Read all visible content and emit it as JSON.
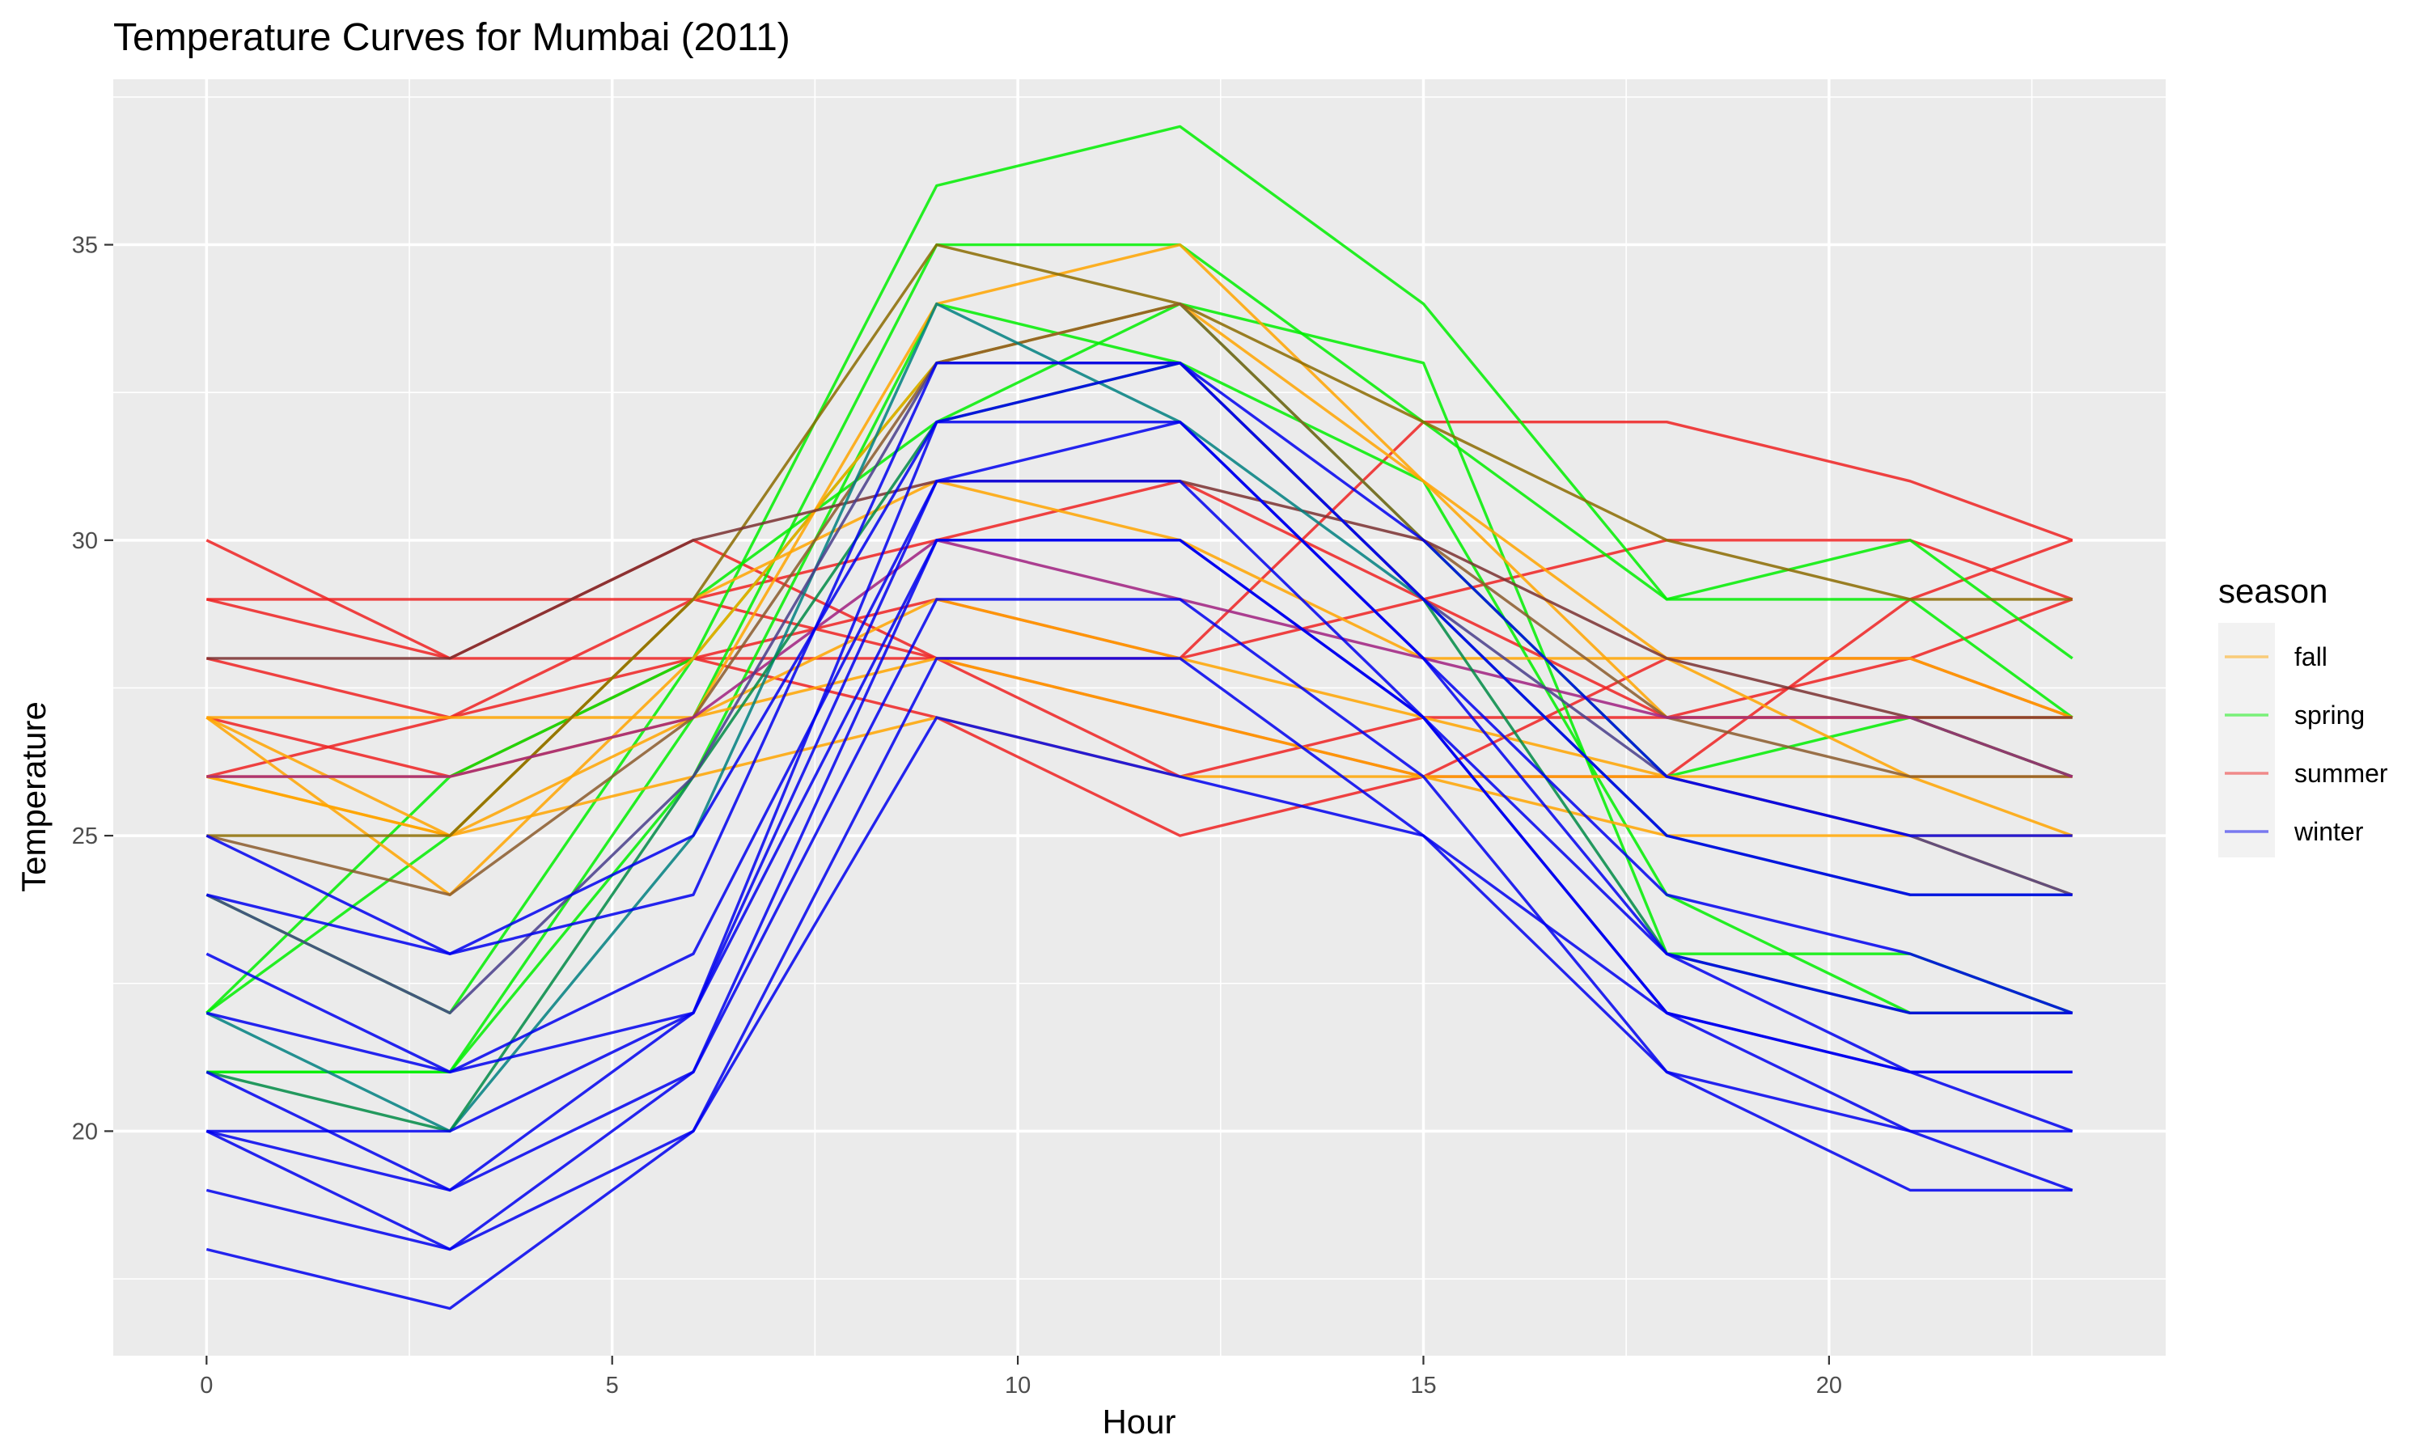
{
  "chart_data": {
    "type": "line",
    "title": "Temperature Curves for Mumbai (2011)",
    "xlabel": "Hour",
    "ylabel": "Temperature",
    "xlim": [
      -1.15,
      24.15
    ],
    "ylim": [
      16.2,
      37.8
    ],
    "x_ticks": [
      0,
      5,
      10,
      15,
      20
    ],
    "y_ticks": [
      20,
      25,
      30,
      35
    ],
    "x_minor": [
      2.5,
      7.5,
      12.5,
      17.5,
      22.5
    ],
    "y_minor": [
      17.5,
      22.5,
      27.5,
      32.5,
      37.5
    ],
    "grid": true,
    "panel_background": "#ebebeb",
    "legend": {
      "title": "season",
      "placement": "right",
      "entries": [
        {
          "label": "fall",
          "color": "#ffa500"
        },
        {
          "label": "spring",
          "color": "#00ee00"
        },
        {
          "label": "summer",
          "color": "#ee2222"
        },
        {
          "label": "winter",
          "color": "#0000ee"
        }
      ]
    },
    "x": [
      0,
      3,
      6,
      9,
      12,
      15,
      18,
      21,
      23
    ],
    "series": [
      {
        "season": "summer",
        "values": [
          30,
          28,
          28,
          27,
          25,
          26,
          26,
          29,
          30
        ]
      },
      {
        "season": "summer",
        "values": [
          29,
          28,
          30,
          28,
          27,
          26,
          28,
          28,
          29
        ]
      },
      {
        "season": "summer",
        "values": [
          28,
          27,
          29,
          30,
          31,
          29,
          30,
          30,
          29
        ]
      },
      {
        "season": "summer",
        "values": [
          27,
          26,
          28,
          29,
          28,
          29,
          27,
          27,
          26
        ]
      },
      {
        "season": "summer",
        "values": [
          26,
          27,
          28,
          28,
          26,
          27,
          27,
          28,
          27
        ]
      },
      {
        "season": "summer",
        "values": [
          29,
          29,
          29,
          28,
          28,
          32,
          32,
          31,
          30
        ]
      },
      {
        "season": "spring",
        "values": [
          22,
          26,
          28,
          36,
          37,
          34,
          29,
          29,
          27
        ]
      },
      {
        "season": "spring",
        "values": [
          21,
          21,
          27,
          35,
          35,
          32,
          29,
          30,
          28
        ]
      },
      {
        "season": "spring",
        "values": [
          21,
          21,
          26,
          34,
          33,
          31,
          24,
          22,
          22
        ]
      },
      {
        "season": "spring",
        "values": [
          22,
          25,
          29,
          32,
          34,
          33,
          23,
          23,
          22
        ]
      },
      {
        "season": "spring",
        "values": [
          24,
          22,
          28,
          33,
          34,
          30,
          26,
          27,
          26
        ]
      },
      {
        "season": "fall",
        "values": [
          26,
          26,
          27,
          34,
          35,
          31,
          27,
          27,
          27
        ]
      },
      {
        "season": "fall",
        "values": [
          27,
          24,
          28,
          33,
          34,
          31,
          28,
          28,
          27
        ]
      },
      {
        "season": "fall",
        "values": [
          27,
          25,
          29,
          31,
          30,
          28,
          28,
          26,
          25
        ]
      },
      {
        "season": "fall",
        "values": [
          26,
          25,
          27,
          29,
          28,
          27,
          26,
          26,
          26
        ]
      },
      {
        "season": "fall",
        "values": [
          27,
          27,
          27,
          28,
          27,
          26,
          26,
          25,
          24
        ]
      },
      {
        "season": "fall",
        "values": [
          26,
          25,
          26,
          27,
          26,
          26,
          25,
          25,
          25
        ]
      },
      {
        "season": "mixed",
        "color": "#8b6b00",
        "values": [
          25,
          25,
          29,
          35,
          34,
          32,
          30,
          29,
          29
        ]
      },
      {
        "season": "mixed",
        "color": "#8b5a2b",
        "values": [
          25,
          24,
          27,
          33,
          34,
          30,
          27,
          26,
          26
        ]
      },
      {
        "season": "mixed",
        "color": "#7a3030",
        "values": [
          28,
          28,
          30,
          31,
          31,
          30,
          28,
          27,
          27
        ]
      },
      {
        "season": "mixed",
        "color": "#a02080",
        "values": [
          26,
          26,
          27,
          30,
          29,
          28,
          27,
          27,
          26
        ]
      },
      {
        "season": "mixed",
        "color": "#008080",
        "values": [
          22,
          20,
          25,
          34,
          32,
          29,
          25,
          24,
          24
        ]
      },
      {
        "season": "mixed",
        "color": "#008b45",
        "values": [
          21,
          20,
          26,
          32,
          33,
          29,
          23,
          22,
          22
        ]
      },
      {
        "season": "mixed",
        "color": "#483d8b",
        "values": [
          24,
          22,
          26,
          33,
          33,
          29,
          26,
          25,
          24
        ]
      },
      {
        "season": "winter",
        "values": [
          25,
          23,
          24,
          33,
          33,
          30,
          26,
          25,
          25
        ]
      },
      {
        "season": "winter",
        "values": [
          24,
          23,
          25,
          32,
          33,
          29,
          25,
          24,
          24
        ]
      },
      {
        "season": "winter",
        "values": [
          23,
          21,
          22,
          32,
          32,
          28,
          24,
          23,
          22
        ]
      },
      {
        "season": "winter",
        "values": [
          22,
          21,
          23,
          31,
          32,
          28,
          23,
          22,
          22
        ]
      },
      {
        "season": "winter",
        "values": [
          21,
          19,
          22,
          31,
          31,
          27,
          22,
          21,
          21
        ]
      },
      {
        "season": "winter",
        "values": [
          20,
          19,
          21,
          30,
          30,
          27,
          22,
          21,
          20
        ]
      },
      {
        "season": "winter",
        "values": [
          19,
          18,
          21,
          29,
          29,
          26,
          21,
          20,
          20
        ]
      },
      {
        "season": "winter",
        "values": [
          20,
          18,
          20,
          28,
          28,
          25,
          22,
          20,
          19
        ]
      },
      {
        "season": "winter",
        "values": [
          18,
          17,
          20,
          27,
          26,
          25,
          21,
          19,
          19
        ]
      },
      {
        "season": "winter",
        "values": [
          20,
          20,
          22,
          30,
          30,
          27,
          23,
          21,
          21
        ]
      }
    ]
  }
}
